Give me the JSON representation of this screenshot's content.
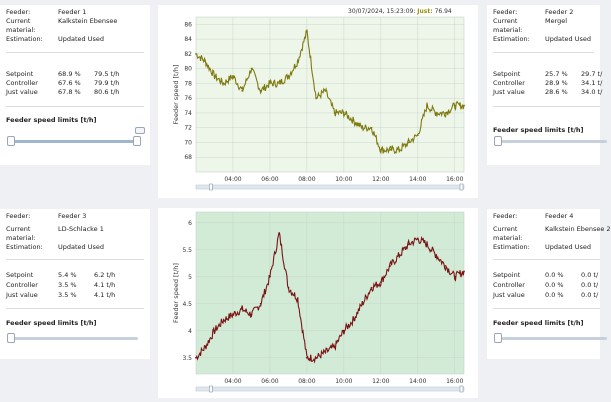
{
  "panels": [
    {
      "feeder_label": "Feeder:",
      "feeder": "Feeder 1",
      "material_label": "Current material:",
      "material": "Kalkstein Ebensee",
      "estimation_label": "Estimation:",
      "estimation": "Updated Used",
      "setpoint_label": "Setpoint",
      "setpoint_pct": "68.9 %",
      "setpoint_th": "79.5 t/h",
      "controller_label": "Controller",
      "controller_pct": "67.6 %",
      "controller_th": "79.9 t/h",
      "just_label": "Just value",
      "just_pct": "67.8 %",
      "just_th": "80.6 t/h",
      "limits_label": "Feeder speed limits [t/h]"
    },
    {
      "feeder_label": "Feeder:",
      "feeder": "Feeder 2",
      "material_label": "Current material:",
      "material": "Mergel",
      "estimation_label": "Estimation:",
      "estimation": "Updated Used",
      "setpoint_label": "Setpoint",
      "setpoint_pct": "25.7 %",
      "setpoint_th": "29.7 t/",
      "controller_label": "Controller",
      "controller_pct": "28.9 %",
      "controller_th": "34.1 t/",
      "just_label": "Just value",
      "just_pct": "28.6 %",
      "just_th": "34.0 t/",
      "limits_label": "Feeder speed limits [t/h]"
    },
    {
      "feeder_label": "Feeder:",
      "feeder": "Feeder 3",
      "material_label": "Current material:",
      "material": "LD-Schlacke 1",
      "estimation_label": "Estimation:",
      "estimation": "Updated Used",
      "setpoint_label": "Setpoint",
      "setpoint_pct": "5.4 %",
      "setpoint_th": "6.2 t/h",
      "controller_label": "Controller",
      "controller_pct": "3.5 %",
      "controller_th": "4.1 t/h",
      "just_label": "Just value",
      "just_pct": "3.5 %",
      "just_th": "4.1 t/h",
      "limits_label": "Feeder speed limits [t/h]"
    },
    {
      "feeder_label": "Feeder:",
      "feeder": "Feeder 4",
      "material_label": "Current material:",
      "material": "Kalkstein Ebensee 2",
      "estimation_label": "Estimation:",
      "estimation": "Updated Used",
      "setpoint_label": "Setpoint",
      "setpoint_pct": "0.0 %",
      "setpoint_th": "0.0 t/",
      "controller_label": "Controller",
      "controller_pct": "0.0 %",
      "controller_th": "0.0 t/",
      "just_label": "Just value",
      "just_pct": "0.0 %",
      "just_th": "0.0 t/",
      "limits_label": "Feeder speed limits [t/h]"
    }
  ],
  "tooltip": {
    "timestamp": "30/07/2024, 15:23:09:",
    "series": "Just:",
    "value": "76.94"
  },
  "chart_data": [
    {
      "type": "line",
      "ylabel": "Feeder speed [t/h]",
      "background": "#eef6ea",
      "line_color": "#7e7a10",
      "x": [
        "02:00",
        "02:30",
        "03:00",
        "03:30",
        "04:00",
        "04:30",
        "05:00",
        "05:30",
        "06:00",
        "06:30",
        "07:00",
        "07:30",
        "08:00",
        "08:30",
        "09:00",
        "09:30",
        "10:00",
        "10:30",
        "11:00",
        "11:30",
        "12:00",
        "12:30",
        "13:00",
        "13:30",
        "14:00",
        "14:30",
        "15:00",
        "15:30",
        "16:00",
        "16:30"
      ],
      "values": [
        82,
        81,
        79,
        78,
        79,
        77,
        80,
        77,
        78,
        78,
        79,
        81,
        85,
        76,
        77,
        74,
        74,
        73,
        72,
        72,
        69,
        69,
        69,
        70,
        71,
        75,
        74,
        74,
        75,
        75
      ],
      "ylim": [
        66,
        87
      ],
      "yticks": [
        68,
        70,
        72,
        74,
        76,
        78,
        80,
        82,
        84,
        86
      ],
      "xticks": [
        "04:00",
        "06:00",
        "08:00",
        "10:00",
        "12:00",
        "14:00",
        "16:00"
      ],
      "grid": true
    },
    {
      "type": "line",
      "ylabel": "Feeder speed [t/h]",
      "background": "#d1ebd6",
      "line_color": "#7a1414",
      "x": [
        "02:00",
        "02:30",
        "03:00",
        "03:30",
        "04:00",
        "04:30",
        "05:00",
        "05:30",
        "06:00",
        "06:30",
        "07:00",
        "07:30",
        "08:00",
        "08:30",
        "09:00",
        "09:30",
        "10:00",
        "10:30",
        "11:00",
        "11:30",
        "12:00",
        "12:30",
        "13:00",
        "13:30",
        "14:00",
        "14:30",
        "15:00",
        "15:30",
        "16:00",
        "16:30"
      ],
      "values": [
        3.5,
        3.7,
        4.0,
        4.2,
        4.3,
        4.4,
        4.3,
        4.5,
        5.0,
        5.8,
        4.8,
        4.6,
        3.5,
        3.5,
        3.6,
        3.7,
        4.0,
        4.2,
        4.5,
        4.8,
        4.9,
        5.2,
        5.4,
        5.6,
        5.7,
        5.6,
        5.4,
        5.2,
        5.0,
        5.1
      ],
      "ylim": [
        3.2,
        6.2
      ],
      "yticks": [
        3.5,
        4,
        4.5,
        5,
        5.5,
        6
      ],
      "xticks": [
        "04:00",
        "06:00",
        "08:00",
        "10:00",
        "12:00",
        "14:00",
        "16:00"
      ],
      "grid": true
    }
  ]
}
